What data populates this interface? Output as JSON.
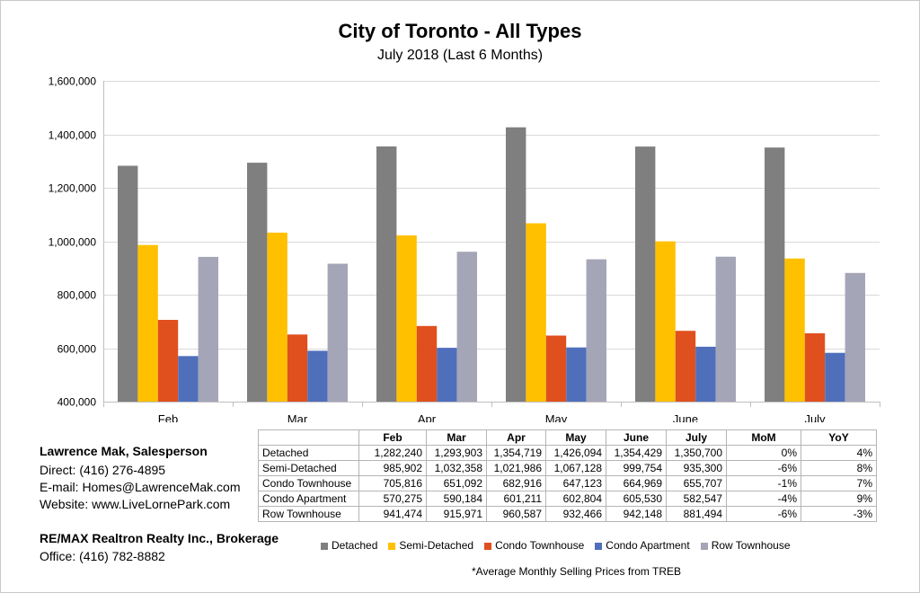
{
  "chart_data": {
    "type": "bar",
    "title": "City of Toronto - All Types",
    "subtitle": "July 2018 (Last 6 Months)",
    "categories": [
      "Feb",
      "Mar",
      "Apr",
      "May",
      "June",
      "July"
    ],
    "ylim": [
      400000,
      1600000
    ],
    "yticks": [
      400000,
      600000,
      800000,
      1000000,
      1200000,
      1400000,
      1600000
    ],
    "ytick_labels": [
      "400,000",
      "600,000",
      "800,000",
      "1,000,000",
      "1,200,000",
      "1,400,000",
      "1,600,000"
    ],
    "grid": true,
    "legend_position": "bottom",
    "series": [
      {
        "name": "Detached",
        "color": "#7f7f7f",
        "values": [
          1282240,
          1293903,
          1354719,
          1426094,
          1354429,
          1350700
        ]
      },
      {
        "name": "Semi-Detached",
        "color": "#ffc000",
        "values": [
          985902,
          1032358,
          1021986,
          1067128,
          999754,
          935300
        ]
      },
      {
        "name": "Condo Townhouse",
        "color": "#e0501e",
        "values": [
          705816,
          651092,
          682916,
          647123,
          664969,
          655707
        ]
      },
      {
        "name": "Condo Apartment",
        "color": "#4f6fbb",
        "values": [
          570275,
          590184,
          601211,
          602804,
          605530,
          582547
        ]
      },
      {
        "name": "Row Townhouse",
        "color": "#a5a5b8",
        "values": [
          941474,
          915971,
          960587,
          932466,
          942148,
          881494
        ]
      }
    ]
  },
  "table": {
    "headers": [
      "",
      "Feb",
      "Mar",
      "Apr",
      "May",
      "June",
      "July",
      "MoM",
      "YoY"
    ],
    "rows": [
      [
        "Detached",
        "1,282,240",
        "1,293,903",
        "1,354,719",
        "1,426,094",
        "1,354,429",
        "1,350,700",
        "0%",
        "4%"
      ],
      [
        "Semi-Detached",
        "985,902",
        "1,032,358",
        "1,021,986",
        "1,067,128",
        "999,754",
        "935,300",
        "-6%",
        "8%"
      ],
      [
        "Condo Townhouse",
        "705,816",
        "651,092",
        "682,916",
        "647,123",
        "664,969",
        "655,707",
        "-1%",
        "7%"
      ],
      [
        "Condo Apartment",
        "570,275",
        "590,184",
        "601,211",
        "602,804",
        "605,530",
        "582,547",
        "-4%",
        "9%"
      ],
      [
        "Row Townhouse",
        "941,474",
        "915,971",
        "960,587",
        "932,466",
        "942,148",
        "881,494",
        "-6%",
        "-3%"
      ]
    ]
  },
  "contact": {
    "name": "Lawrence Mak, Salesperson",
    "direct": "Direct:  (416) 276-4895",
    "email": "E-mail:  Homes@LawrenceMak.com",
    "website": "Website: www.LiveLornePark.com",
    "brokerage": "RE/MAX Realtron Realty Inc., Brokerage",
    "office": "Office: (416) 782-8882"
  },
  "footnote": "*Average Monthly Selling Prices  from TREB"
}
